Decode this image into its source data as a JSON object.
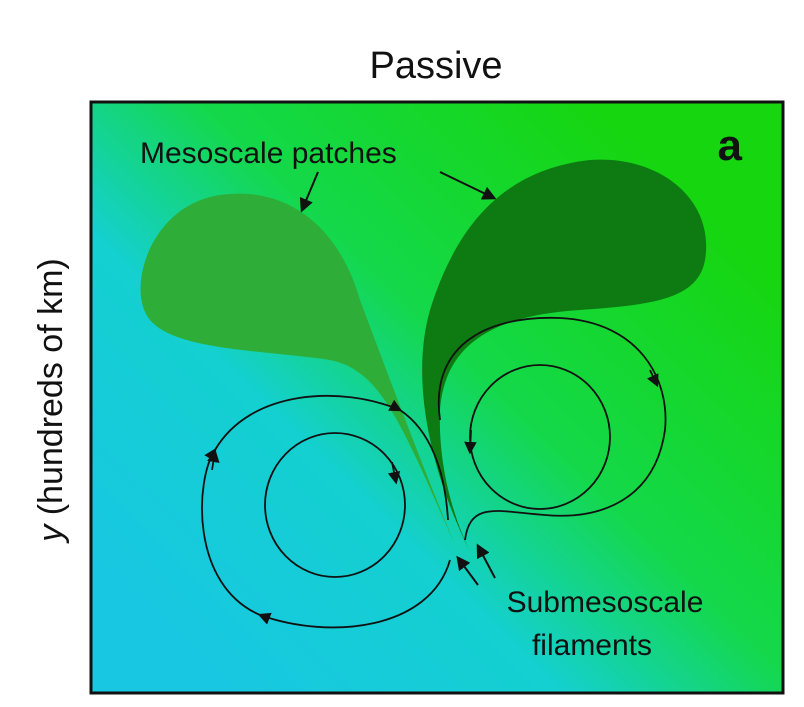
{
  "header": {
    "title": "Passive"
  },
  "panel": {
    "label": "a"
  },
  "y_label": {
    "variable": "y",
    "unit": "(hundreds of km)"
  },
  "annotations": {
    "patches": "Mesoscale patches",
    "filaments": [
      "Submesoscale",
      "filaments"
    ]
  }
}
